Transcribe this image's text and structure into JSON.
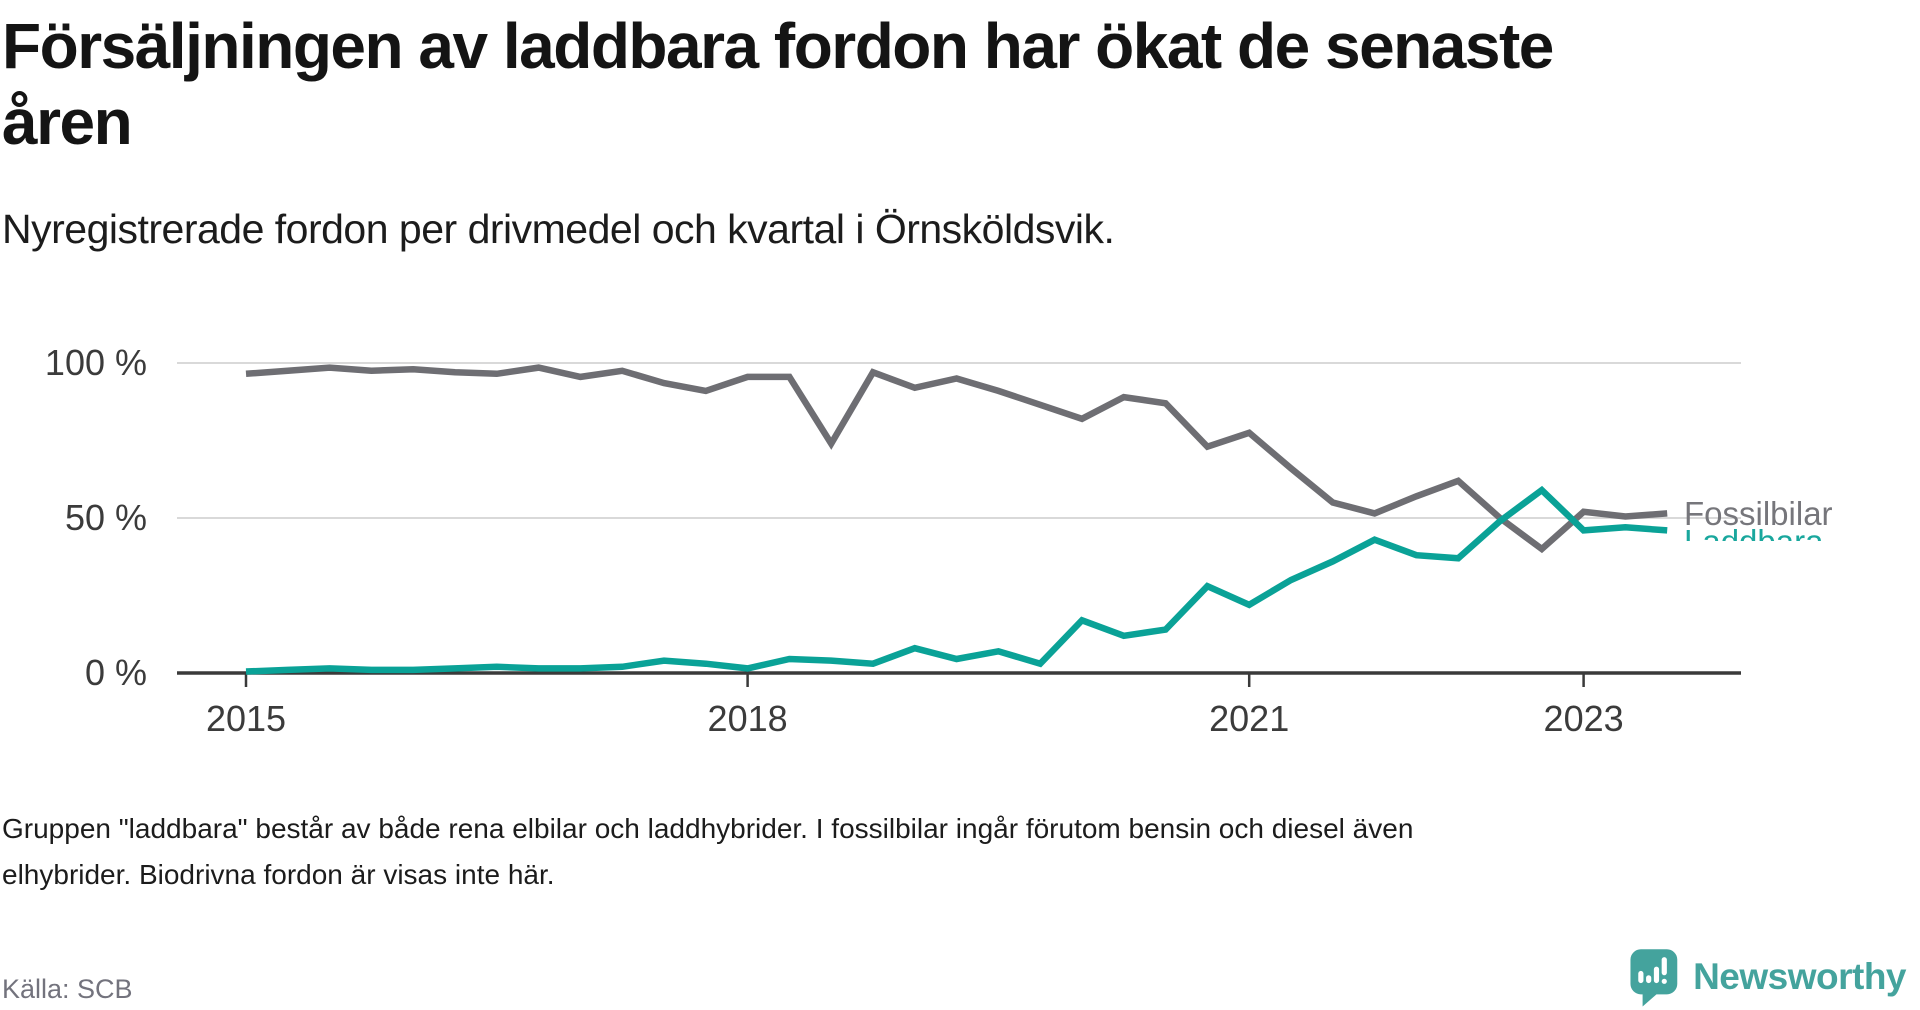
{
  "title": "Försäljningen av laddbara fordon har ökat de senaste\nåren",
  "subtitle": "Nyregistrerade fordon per drivmedel och kvartal i Örnsköldsvik.",
  "footer": {
    "line1": "Gruppen \"laddbara\" består av både rena elbilar och laddhybrider. I fossilbilar ingår förutom bensin och diesel även",
    "line2": "elhybrider. Biodrivna fordon är visas inte här."
  },
  "source": "Källa: SCB",
  "branding": {
    "name": "Newsworthy",
    "icon": "newsworthy-speech-bubble-chart-icon",
    "color": "#44a39d"
  },
  "colors": {
    "fossil_line": "#6e6e73",
    "laddbara_line": "#0aa297",
    "fossil_label": "#76767b",
    "laddbara_label": "#19a79d",
    "axis": "#3a3a3a",
    "gridline": "#d9d9d9"
  },
  "chart_data": {
    "type": "line",
    "title": "Försäljningen av laddbara fordon har ökat de senaste åren",
    "subtitle": "Nyregistrerade fordon per drivmedel och kvartal i Örnsköldsvik.",
    "unit": "%",
    "ylim": [
      0,
      100
    ],
    "grid": "horizontal",
    "legend_position": "end-of-line-labels",
    "x": [
      "2015 Q1",
      "2015 Q2",
      "2015 Q3",
      "2015 Q4",
      "2016 Q1",
      "2016 Q2",
      "2016 Q3",
      "2016 Q4",
      "2017 Q1",
      "2017 Q2",
      "2017 Q3",
      "2017 Q4",
      "2018 Q1",
      "2018 Q2",
      "2018 Q3",
      "2018 Q4",
      "2019 Q1",
      "2019 Q2",
      "2019 Q3",
      "2019 Q4",
      "2020 Q1",
      "2020 Q2",
      "2020 Q3",
      "2020 Q4",
      "2021 Q1",
      "2021 Q2",
      "2021 Q3",
      "2021 Q4",
      "2022 Q1",
      "2022 Q2",
      "2022 Q3",
      "2022 Q4",
      "2023 Q1",
      "2023 Q2",
      "2023 Q3"
    ],
    "series": [
      {
        "name": "Fossilbilar",
        "color": "#6e6e73",
        "values": [
          96.5,
          97.5,
          98.5,
          97.5,
          98,
          97,
          96.5,
          98.5,
          95.5,
          97.5,
          93.5,
          91,
          95.5,
          95.5,
          74,
          97,
          92,
          95,
          91,
          86.5,
          82,
          89,
          87,
          73,
          77.5,
          66,
          55,
          51.5,
          57,
          62,
          50,
          40,
          52,
          50.5,
          51.5
        ]
      },
      {
        "name": "Laddbara",
        "color": "#0aa297",
        "values": [
          0.5,
          1,
          1.5,
          1,
          1,
          1.5,
          2,
          1.5,
          1.5,
          2,
          4,
          3,
          1.5,
          4.5,
          4,
          3,
          8,
          4.5,
          7,
          3,
          17,
          12,
          14,
          28,
          22,
          30,
          36,
          43,
          38,
          37,
          49,
          59,
          46,
          47,
          46
        ]
      }
    ],
    "yticks": [
      {
        "label": "0 %",
        "value": 0
      },
      {
        "label": "50 %",
        "value": 50
      },
      {
        "label": "100 %",
        "value": 100
      }
    ],
    "xticks": [
      {
        "label": "2015",
        "index": 0
      },
      {
        "label": "2018",
        "index": 12
      },
      {
        "label": "2021",
        "index": 24
      },
      {
        "label": "2023",
        "index": 32
      }
    ]
  }
}
